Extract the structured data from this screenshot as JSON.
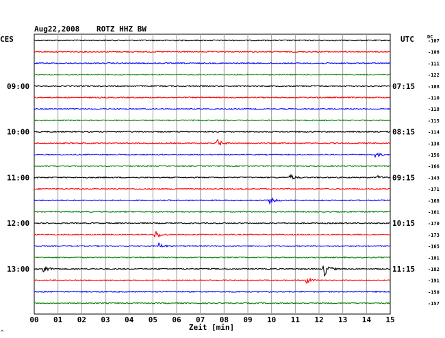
{
  "header": {
    "date": "Aug22,2008",
    "station": "ROTZ HHZ BW",
    "left_tz": "CES",
    "right_tz": "UTC",
    "dc_label": "DC",
    "corner_mark": "^"
  },
  "chart_data": {
    "type": "seismogram",
    "xlabel": "Zeit [min]",
    "x_ticks": [
      "00",
      "01",
      "02",
      "03",
      "04",
      "05",
      "06",
      "07",
      "08",
      "09",
      "10",
      "11",
      "12",
      "13",
      "14",
      "15"
    ],
    "xlim": [
      0,
      15
    ],
    "trace_colors": [
      "#000000",
      "#ff0000",
      "#0000ff",
      "#008000"
    ],
    "left_time_labels": [
      {
        "trace": 4,
        "label": "09:00"
      },
      {
        "trace": 8,
        "label": "10:00"
      },
      {
        "trace": 12,
        "label": "11:00"
      },
      {
        "trace": 16,
        "label": "12:00"
      },
      {
        "trace": 20,
        "label": "13:00"
      }
    ],
    "right_time_labels": [
      {
        "trace": 0,
        "label": ""
      },
      {
        "trace": 4,
        "label": "07:15"
      },
      {
        "trace": 8,
        "label": "08:15"
      },
      {
        "trace": 12,
        "label": "09:15"
      },
      {
        "trace": 16,
        "label": "10:15"
      },
      {
        "trace": 20,
        "label": "11:15"
      }
    ],
    "dc_offsets": [
      "-107",
      "-108",
      "-111",
      "-122",
      "-108",
      "-110",
      "-118",
      "-115",
      "-114",
      "-138",
      "-156",
      "-166",
      "-143",
      "-171",
      "-168",
      "-161",
      "-170",
      "-173",
      "-165",
      "-181",
      "-182",
      "-191",
      "-150",
      "-157"
    ],
    "events": [
      {
        "trace": 9,
        "minute": 7.7,
        "amp": 6
      },
      {
        "trace": 10,
        "minute": 14.4,
        "amp": 3
      },
      {
        "trace": 12,
        "minute": 10.8,
        "amp": 4
      },
      {
        "trace": 12,
        "minute": 14.5,
        "amp": 2
      },
      {
        "trace": 14,
        "minute": 9.9,
        "amp": 5
      },
      {
        "trace": 17,
        "minute": 5.1,
        "amp": 7
      },
      {
        "trace": 18,
        "minute": 5.3,
        "amp": 3
      },
      {
        "trace": 20,
        "minute": 0.4,
        "amp": 6
      },
      {
        "trace": 20,
        "minute": 12.2,
        "amp": 12
      },
      {
        "trace": 21,
        "minute": 11.5,
        "amp": 4
      }
    ]
  }
}
